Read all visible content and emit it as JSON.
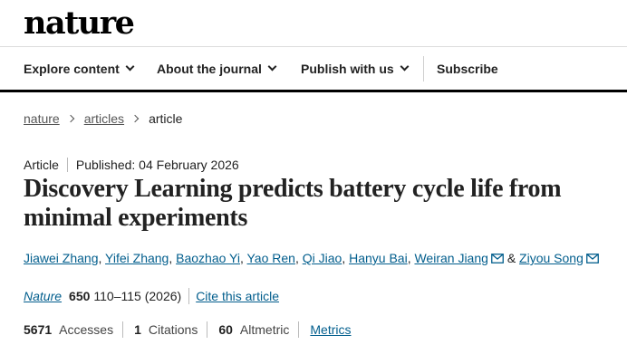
{
  "site": {
    "logo": "nature"
  },
  "nav": {
    "items": [
      {
        "label": "Explore content"
      },
      {
        "label": "About the journal"
      },
      {
        "label": "Publish with us"
      }
    ],
    "subscribe": "Subscribe"
  },
  "breadcrumb": [
    "nature",
    "articles",
    "article"
  ],
  "article": {
    "type": "Article",
    "published": "Published: 04 February 2026",
    "title": "Discovery Learning predicts battery cycle life from minimal experiments",
    "authors": [
      "Jiawei Zhang",
      "Yifei Zhang",
      "Baozhao Yi",
      "Yao Ren",
      "Qi Jiao",
      "Hanyu Bai",
      "Weiran Jiang",
      "Ziyou Song"
    ],
    "author_joiner": "&",
    "journal": "Nature",
    "volume": "650",
    "pages_year": "110–115 (2026)",
    "cite_label": "Cite this article"
  },
  "metrics": {
    "accesses_count": "5671",
    "accesses_label": "Accesses",
    "citations_count": "1",
    "citations_label": "Citations",
    "altmetric_count": "60",
    "altmetric_label": "Altmetric",
    "metrics_link": "Metrics"
  },
  "colors": {
    "link": "#025e8d",
    "text": "#222222"
  }
}
